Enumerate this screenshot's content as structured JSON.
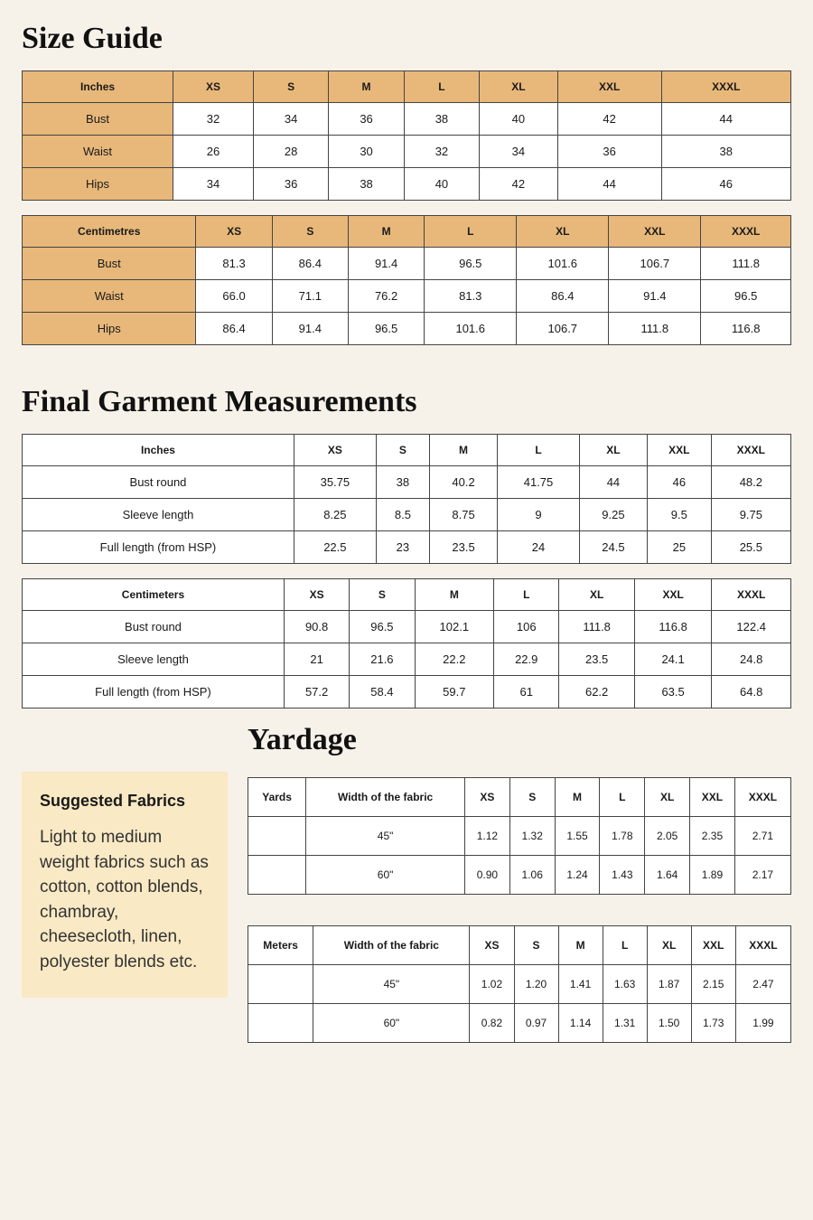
{
  "headings": {
    "size_guide": "Size Guide",
    "final_garment": "Final Garment Measurements",
    "yardage": "Yardage",
    "suggested_fabrics": "Suggested Fabrics"
  },
  "size_cols": [
    "XS",
    "S",
    "M",
    "L",
    "XL",
    "XXL",
    "XXXL"
  ],
  "size_guide_inches": {
    "unit_label": "Inches",
    "rows": [
      {
        "label": "Bust",
        "vals": [
          "32",
          "34",
          "36",
          "38",
          "40",
          "42",
          "44"
        ]
      },
      {
        "label": "Waist",
        "vals": [
          "26",
          "28",
          "30",
          "32",
          "34",
          "36",
          "38"
        ]
      },
      {
        "label": "Hips",
        "vals": [
          "34",
          "36",
          "38",
          "40",
          "42",
          "44",
          "46"
        ]
      }
    ]
  },
  "size_guide_cm": {
    "unit_label": "Centimetres",
    "rows": [
      {
        "label": "Bust",
        "vals": [
          "81.3",
          "86.4",
          "91.4",
          "96.5",
          "101.6",
          "106.7",
          "111.8"
        ]
      },
      {
        "label": "Waist",
        "vals": [
          "66.0",
          "71.1",
          "76.2",
          "81.3",
          "86.4",
          "91.4",
          "96.5"
        ]
      },
      {
        "label": "Hips",
        "vals": [
          "86.4",
          "91.4",
          "96.5",
          "101.6",
          "106.7",
          "111.8",
          "116.8"
        ]
      }
    ]
  },
  "garment_inches": {
    "unit_label": "Inches",
    "rows": [
      {
        "label": "Bust round",
        "vals": [
          "35.75",
          "38",
          "40.2",
          "41.75",
          "44",
          "46",
          "48.2"
        ]
      },
      {
        "label": "Sleeve length",
        "vals": [
          "8.25",
          "8.5",
          "8.75",
          "9",
          "9.25",
          "9.5",
          "9.75"
        ]
      },
      {
        "label": "Full length (from HSP)",
        "vals": [
          "22.5",
          "23",
          "23.5",
          "24",
          "24.5",
          "25",
          "25.5"
        ]
      }
    ]
  },
  "garment_cm": {
    "unit_label": "Centimeters",
    "rows": [
      {
        "label": "Bust round",
        "vals": [
          "90.8",
          "96.5",
          "102.1",
          "106",
          "111.8",
          "116.8",
          "122.4"
        ]
      },
      {
        "label": "Sleeve length",
        "vals": [
          "21",
          "21.6",
          "22.2",
          "22.9",
          "23.5",
          "24.1",
          "24.8"
        ]
      },
      {
        "label": "Full length (from HSP)",
        "vals": [
          "57.2",
          "58.4",
          "59.7",
          "61",
          "62.2",
          "63.5",
          "64.8"
        ]
      }
    ]
  },
  "fabrics_text": "Light to medium weight fabrics such as cotton, cotton blends, chambray, cheesecloth, linen, polyester blends etc.",
  "yardage_yards": {
    "unit_label": "Yards",
    "width_label": "Width of the fabric",
    "rows": [
      {
        "width": "45\"",
        "vals": [
          "1.12",
          "1.32",
          "1.55",
          "1.78",
          "2.05",
          "2.35",
          "2.71"
        ]
      },
      {
        "width": "60\"",
        "vals": [
          "0.90",
          "1.06",
          "1.24",
          "1.43",
          "1.64",
          "1.89",
          "2.17"
        ]
      }
    ]
  },
  "yardage_meters": {
    "unit_label": "Meters",
    "width_label": "Width of the fabric",
    "rows": [
      {
        "width": "45\"",
        "vals": [
          "1.02",
          "1.20",
          "1.41",
          "1.63",
          "1.87",
          "2.15",
          "2.47"
        ]
      },
      {
        "width": "60\"",
        "vals": [
          "0.82",
          "0.97",
          "1.14",
          "1.31",
          "1.50",
          "1.73",
          "1.99"
        ]
      }
    ]
  },
  "colors": {
    "page_bg": "#f7f2e9",
    "table_header_bg": "#e8b87a",
    "fabrics_bg": "#f9e9c4",
    "border": "#444"
  }
}
